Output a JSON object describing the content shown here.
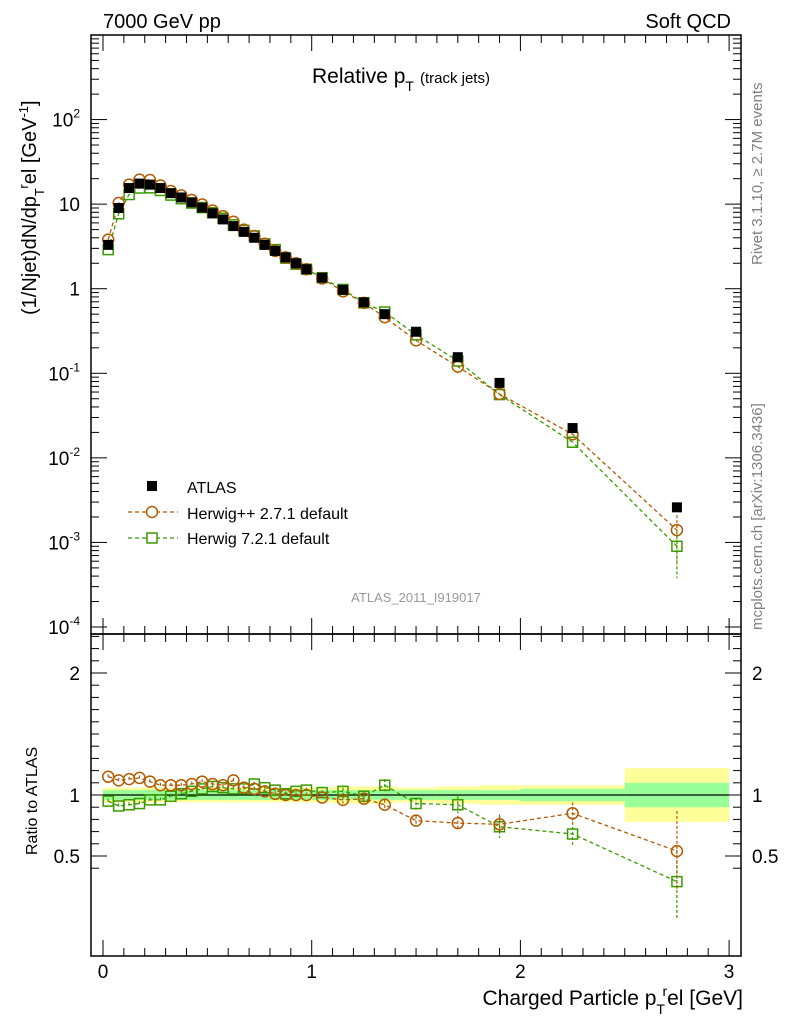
{
  "header": {
    "left": "7000 GeV pp",
    "right": "Soft QCD"
  },
  "side_labels": {
    "rivet": "Rivet 3.1.10, ≥ 2.7M events",
    "mcplots": "mcplots.cern.ch [arXiv:1306.3436]"
  },
  "chart_data": [
    {
      "type": "scatter",
      "title": "Relative p",
      "title_sub": "T",
      "title_suffix": "(track jets)",
      "ylabel": "(1/Njet)dN/dp",
      "ylabel_sub": "T",
      "ylabel_sup": "r",
      "ylabel_tail": "el [GeV",
      "ylabel_tail_sup": "-1",
      "ylabel_close": "]",
      "analysis_tag": "ATLAS_2011_I919017",
      "yscale": "log",
      "xlim": [
        -0.05,
        3.05
      ],
      "ylim": [
        0.0001,
        1000
      ],
      "yticks": [
        {
          "value": 0.0001,
          "base": "10",
          "exp": "-4"
        },
        {
          "value": 0.001,
          "base": "10",
          "exp": "-3"
        },
        {
          "value": 0.01,
          "base": "10",
          "exp": "-2"
        },
        {
          "value": 0.1,
          "base": "10",
          "exp": "-1"
        },
        {
          "value": 1,
          "base": "1",
          "exp": ""
        },
        {
          "value": 10,
          "base": "10",
          "exp": ""
        },
        {
          "value": 100,
          "base": "10",
          "exp": "2"
        }
      ],
      "x": [
        0.025,
        0.075,
        0.125,
        0.175,
        0.225,
        0.275,
        0.325,
        0.375,
        0.425,
        0.475,
        0.525,
        0.575,
        0.625,
        0.675,
        0.725,
        0.775,
        0.825,
        0.875,
        0.925,
        0.975,
        1.05,
        1.15,
        1.25,
        1.35,
        1.5,
        1.7,
        1.9,
        2.25,
        2.75
      ],
      "series": [
        {
          "name": "ATLAS",
          "color": "#000000",
          "marker": "filled-square",
          "values": [
            3.3,
            9.0,
            15.5,
            17.5,
            17.0,
            15.5,
            13.5,
            12.0,
            10.5,
            9.1,
            7.8,
            6.6,
            5.5,
            4.7,
            4.0,
            3.3,
            2.8,
            2.35,
            2.0,
            1.7,
            1.35,
            0.97,
            0.69,
            0.5,
            0.31,
            0.155,
            0.077,
            0.0225,
            0.0026
          ]
        },
        {
          "name": "Herwig++ 2.7.1 default",
          "color": "#b35a00",
          "marker": "open-circle",
          "values": [
            3.8,
            10.3,
            17.0,
            19.5,
            19.3,
            16.6,
            14.3,
            12.7,
            11.2,
            9.9,
            8.4,
            7.2,
            6.2,
            5.0,
            4.2,
            3.4,
            2.8,
            2.35,
            2.0,
            1.7,
            1.32,
            0.93,
            0.68,
            0.46,
            0.245,
            0.12,
            0.057,
            0.019,
            0.0014
          ]
        },
        {
          "name": "Herwig 7.2.1 default",
          "color": "#3a9a00",
          "marker": "open-square",
          "values": [
            2.9,
            7.7,
            13.0,
            15.5,
            15.6,
            14.5,
            12.8,
            11.6,
            10.3,
            9.1,
            7.9,
            6.8,
            5.7,
            4.9,
            4.2,
            3.4,
            2.9,
            2.3,
            1.95,
            1.7,
            1.35,
            0.98,
            0.68,
            0.53,
            0.285,
            0.14,
            0.056,
            0.0153,
            0.0009
          ]
        }
      ]
    },
    {
      "type": "scatter",
      "ylabel": "Ratio to ATLAS",
      "xlabel": "Charged Particle p",
      "xlabel_sub": "T",
      "xlabel_sup": "r",
      "xlabel_tail": "el [GeV]",
      "xlim": [
        -0.05,
        3.05
      ],
      "ylim": [
        0.35,
        2.35
      ],
      "xticks": [
        "0",
        "1",
        "2",
        "3"
      ],
      "yticks": [
        "0.5",
        "1",
        "2"
      ],
      "x": [
        0.025,
        0.075,
        0.125,
        0.175,
        0.225,
        0.275,
        0.325,
        0.375,
        0.425,
        0.475,
        0.525,
        0.575,
        0.625,
        0.675,
        0.725,
        0.775,
        0.825,
        0.875,
        0.925,
        0.975,
        1.05,
        1.15,
        1.25,
        1.35,
        1.5,
        1.7,
        1.9,
        2.25,
        2.75
      ],
      "bands": {
        "bin_edges": [
          0.0,
          0.05,
          0.1,
          0.15,
          0.2,
          0.25,
          0.3,
          0.35,
          0.4,
          0.45,
          0.5,
          0.55,
          0.6,
          0.65,
          0.7,
          0.75,
          0.8,
          0.85,
          0.9,
          0.95,
          1.0,
          1.1,
          1.2,
          1.3,
          1.4,
          1.6,
          1.8,
          2.0,
          2.5,
          3.0
        ],
        "stat": [
          0.04,
          0.04,
          0.04,
          0.04,
          0.04,
          0.04,
          0.04,
          0.04,
          0.04,
          0.04,
          0.04,
          0.04,
          0.04,
          0.04,
          0.04,
          0.04,
          0.04,
          0.04,
          0.04,
          0.04,
          0.04,
          0.04,
          0.04,
          0.04,
          0.04,
          0.04,
          0.04,
          0.05,
          0.1
        ],
        "total": [
          0.06,
          0.06,
          0.06,
          0.06,
          0.06,
          0.06,
          0.06,
          0.06,
          0.06,
          0.06,
          0.06,
          0.06,
          0.06,
          0.06,
          0.06,
          0.06,
          0.06,
          0.06,
          0.06,
          0.06,
          0.06,
          0.07,
          0.07,
          0.07,
          0.06,
          0.07,
          0.08,
          0.08,
          0.22
        ],
        "stat_color": "#99ff99",
        "total_color": "#ffff99"
      },
      "series": [
        {
          "name": "Herwig++ 2.7.1 default",
          "color": "#b35a00",
          "marker": "open-circle",
          "values": [
            1.15,
            1.12,
            1.13,
            1.14,
            1.11,
            1.08,
            1.08,
            1.08,
            1.09,
            1.11,
            1.09,
            1.08,
            1.12,
            1.06,
            1.05,
            1.03,
            1.01,
            1.0,
            1.0,
            1.0,
            0.98,
            0.96,
            0.97,
            0.92,
            0.79,
            0.77,
            0.76,
            0.85,
            0.54
          ],
          "errors": [
            0.02,
            0.02,
            0.02,
            0.02,
            0.02,
            0.02,
            0.02,
            0.02,
            0.02,
            0.02,
            0.02,
            0.02,
            0.02,
            0.02,
            0.02,
            0.02,
            0.02,
            0.02,
            0.02,
            0.02,
            0.02,
            0.03,
            0.03,
            0.04,
            0.04,
            0.06,
            0.08,
            0.09,
            0.33
          ]
        },
        {
          "name": "Herwig 7.2.1 default",
          "color": "#3a9a00",
          "marker": "open-square",
          "values": [
            0.95,
            0.91,
            0.92,
            0.93,
            0.96,
            0.96,
            0.99,
            1.01,
            1.03,
            1.05,
            1.07,
            1.06,
            1.05,
            1.05,
            1.09,
            1.06,
            1.04,
            1.01,
            1.03,
            1.04,
            1.02,
            1.03,
            0.99,
            1.08,
            0.93,
            0.92,
            0.74,
            0.68,
            0.29
          ],
          "errors": [
            0.02,
            0.02,
            0.02,
            0.02,
            0.02,
            0.02,
            0.02,
            0.02,
            0.02,
            0.02,
            0.02,
            0.02,
            0.02,
            0.02,
            0.02,
            0.02,
            0.02,
            0.02,
            0.02,
            0.02,
            0.02,
            0.03,
            0.03,
            0.05,
            0.05,
            0.07,
            0.09,
            0.1,
            0.3
          ]
        }
      ]
    }
  ]
}
